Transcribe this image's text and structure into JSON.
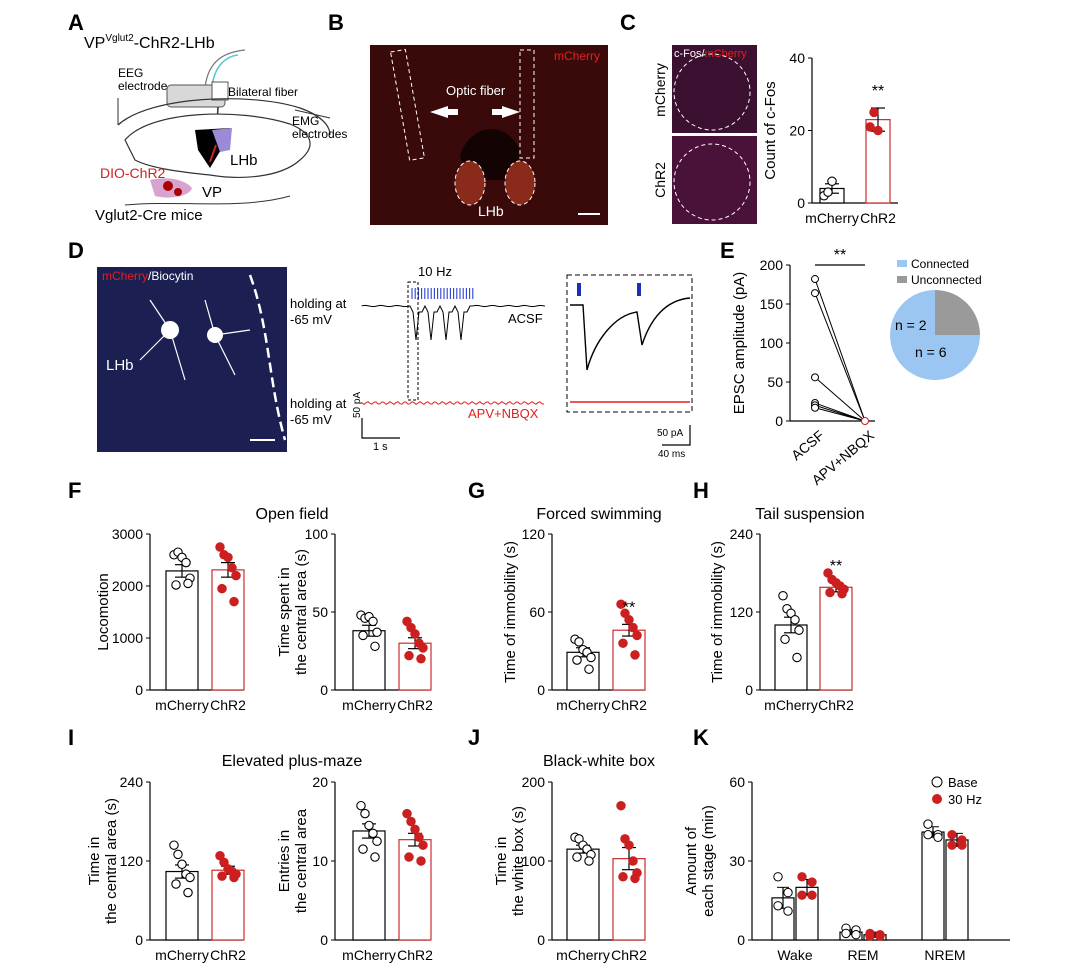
{
  "panel_letters": [
    "A",
    "B",
    "C",
    "D",
    "E",
    "F",
    "G",
    "H",
    "I",
    "J",
    "K"
  ],
  "colors": {
    "control": "#ffffff",
    "chr2": "#cc1f1f",
    "bar_chr2_edge": "#cc2b2b",
    "trace_red": "#e02020",
    "blue_stim": "#1c2fb8",
    "pie_connected": "#9cc6f2",
    "pie_unconnected": "#9a9a9a"
  },
  "panelA": {
    "title_main": "VP",
    "title_sup": "Vglut2",
    "title_rest": "-ChR2-LHb",
    "labels": {
      "eeg": "EEG",
      "electrode": "electrode",
      "bilateral": "Bilateral fiber",
      "emg": "EMG",
      "emg2": "electrodes",
      "lhb": "LHb",
      "dio": "DIO-ChR2",
      "vp": "VP",
      "mice": "Vglut2-Cre mice"
    }
  },
  "panelB": {
    "stain": "mCherry",
    "optic": "Optic fiber",
    "lhb": "LHb"
  },
  "panelC": {
    "stain_a": "c-Fos",
    "stain_sep": "/",
    "stain_b": "mCherry",
    "row1": "mCherry",
    "row2": "ChR2",
    "sig": "**"
  },
  "panelD": {
    "stain_a": "mCherry",
    "stain_b": "/Biocytin",
    "lhb": "LHb",
    "hz": "10 Hz",
    "hold1a": "holding at",
    "hold1b": "-65 mV",
    "hold2a": "holding at",
    "hold2b": "-65 mV",
    "acsf": "ACSF",
    "apv": "APV+NBQX",
    "scale1_y": "50 pA",
    "scale1_x": "1 s",
    "scale2_y": "50 pA",
    "scale2_x": "40 ms"
  },
  "panelE": {
    "legend": [
      "Connected",
      "Unconnected"
    ],
    "sig": "**",
    "pie_labels": [
      "n = 2",
      "n = 6"
    ]
  },
  "section_titles": {
    "F": "Open field",
    "G": "Forced swimming",
    "H": "Tail suspension",
    "I": "Elevated plus-maze",
    "J": "Black-white box"
  },
  "legendK": [
    "Base",
    "30 Hz"
  ],
  "chart_data": [
    {
      "id": "C",
      "type": "bar",
      "categories": [
        "mCherry",
        "ChR2"
      ],
      "values": [
        4,
        23
      ],
      "errors": [
        1.3,
        3.2
      ],
      "ylabel": "Count of c-Fos",
      "ylim": [
        0,
        40
      ],
      "yticks": [
        0,
        20,
        40
      ],
      "points": [
        [
          2,
          3,
          6
        ],
        [
          21,
          25,
          20
        ]
      ],
      "sig": "**"
    },
    {
      "id": "E",
      "type": "scatter",
      "categories": [
        "ACSF",
        "APV+NBQX"
      ],
      "ylabel": "EPSC amplitude (pA)",
      "ylim": [
        0,
        200
      ],
      "yticks": [
        0,
        50,
        100,
        150,
        200
      ],
      "pairs": [
        [
          182,
          0
        ],
        [
          164,
          0
        ],
        [
          56,
          0
        ],
        [
          23,
          0
        ],
        [
          20,
          0
        ],
        [
          17,
          0
        ]
      ]
    },
    {
      "id": "E-pie",
      "type": "pie",
      "labels": [
        "Connected",
        "Unconnected"
      ],
      "values": [
        6,
        2
      ]
    },
    {
      "id": "F1",
      "type": "bar",
      "categories": [
        "mCherry",
        "ChR2"
      ],
      "values": [
        2290,
        2310
      ],
      "errors": [
        120,
        140
      ],
      "ylabel": "Locomotion",
      "ylim": [
        0,
        3000
      ],
      "yticks": [
        0,
        1000,
        2000,
        3000
      ],
      "points": [
        [
          2600,
          2650,
          2550,
          2450,
          2150,
          2020,
          2050
        ],
        [
          2750,
          2600,
          2550,
          2350,
          2200,
          1950,
          1700
        ]
      ]
    },
    {
      "id": "F2",
      "type": "bar",
      "categories": [
        "mCherry",
        "ChR2"
      ],
      "values": [
        38,
        30
      ],
      "errors": [
        3.5,
        3.5
      ],
      "ylabel": "Time spent in\nthe central area (s)",
      "ylim": [
        0,
        100
      ],
      "yticks": [
        0,
        50,
        100
      ],
      "points": [
        [
          48,
          46,
          47,
          44,
          37,
          35,
          28
        ],
        [
          44,
          40,
          36,
          30,
          27,
          22,
          20
        ]
      ]
    },
    {
      "id": "G",
      "type": "bar",
      "categories": [
        "mCherry",
        "ChR2"
      ],
      "values": [
        29,
        46
      ],
      "errors": [
        3.5,
        4.5
      ],
      "ylabel": "Time of immobility (s)",
      "ylim": [
        0,
        120
      ],
      "yticks": [
        0,
        60,
        120
      ],
      "points": [
        [
          39,
          37,
          31,
          29,
          25,
          23,
          16
        ],
        [
          66,
          59,
          54,
          48,
          42,
          36,
          27
        ]
      ],
      "sig": "**"
    },
    {
      "id": "H",
      "type": "bar",
      "categories": [
        "mCherry",
        "ChR2"
      ],
      "values": [
        100,
        158
      ],
      "errors": [
        12,
        7
      ],
      "ylabel": "Time of immobility (s)",
      "ylim": [
        0,
        240
      ],
      "yticks": [
        0,
        120,
        240
      ],
      "points": [
        [
          145,
          125,
          118,
          108,
          92,
          78,
          50
        ],
        [
          180,
          170,
          165,
          160,
          155,
          150,
          148
        ]
      ],
      "sig": "**"
    },
    {
      "id": "I1",
      "type": "bar",
      "categories": [
        "mCherry",
        "ChR2"
      ],
      "values": [
        104,
        106
      ],
      "errors": [
        10,
        6
      ],
      "ylabel": "Time in\nthe central area (s)",
      "ylim": [
        0,
        240
      ],
      "yticks": [
        0,
        120,
        240
      ],
      "points": [
        [
          144,
          130,
          115,
          100,
          95,
          85,
          72
        ],
        [
          128,
          118,
          108,
          104,
          100,
          97,
          95
        ]
      ]
    },
    {
      "id": "I2",
      "type": "bar",
      "categories": [
        "mCherry",
        "ChR2"
      ],
      "values": [
        13.8,
        12.7
      ],
      "errors": [
        0.9,
        0.8
      ],
      "ylabel": "Entries in\nthe central area",
      "ylim": [
        0,
        20
      ],
      "yticks": [
        0,
        10,
        20
      ],
      "points": [
        [
          17,
          16,
          14.5,
          13.5,
          12.5,
          11.5,
          10.5
        ],
        [
          16,
          15,
          14,
          13,
          12,
          10.5,
          10
        ]
      ]
    },
    {
      "id": "J",
      "type": "bar",
      "categories": [
        "mCherry",
        "ChR2"
      ],
      "values": [
        115,
        103
      ],
      "errors": [
        5,
        14
      ],
      "ylabel": "Time in\nthe white box (s)",
      "ylim": [
        0,
        200
      ],
      "yticks": [
        0,
        100,
        200
      ],
      "points": [
        [
          130,
          128,
          120,
          115,
          108,
          105,
          100
        ],
        [
          170,
          128,
          120,
          100,
          85,
          80,
          78
        ]
      ]
    },
    {
      "id": "K",
      "type": "bar",
      "categories": [
        "Wake",
        "REM",
        "NREM"
      ],
      "series": [
        {
          "name": "Base",
          "values": [
            16,
            3,
            41
          ],
          "errors": [
            4,
            1,
            2
          ]
        },
        {
          "name": "30 Hz",
          "values": [
            20,
            2,
            38
          ],
          "errors": [
            3,
            1,
            2.5
          ]
        }
      ],
      "ylabel": "Amount of\neach stage (min)",
      "ylim": [
        0,
        60
      ],
      "yticks": [
        0,
        30,
        60
      ],
      "points": [
        [
          [
            24,
            18,
            13,
            11
          ],
          [
            24,
            22,
            17,
            17
          ]
        ],
        [
          [
            4.5,
            3.8,
            2.5,
            2
          ],
          [
            2.5,
            2,
            1.5,
            1.5
          ]
        ],
        [
          [
            44,
            40,
            40,
            39
          ],
          [
            40,
            38,
            36,
            36
          ]
        ]
      ]
    }
  ]
}
